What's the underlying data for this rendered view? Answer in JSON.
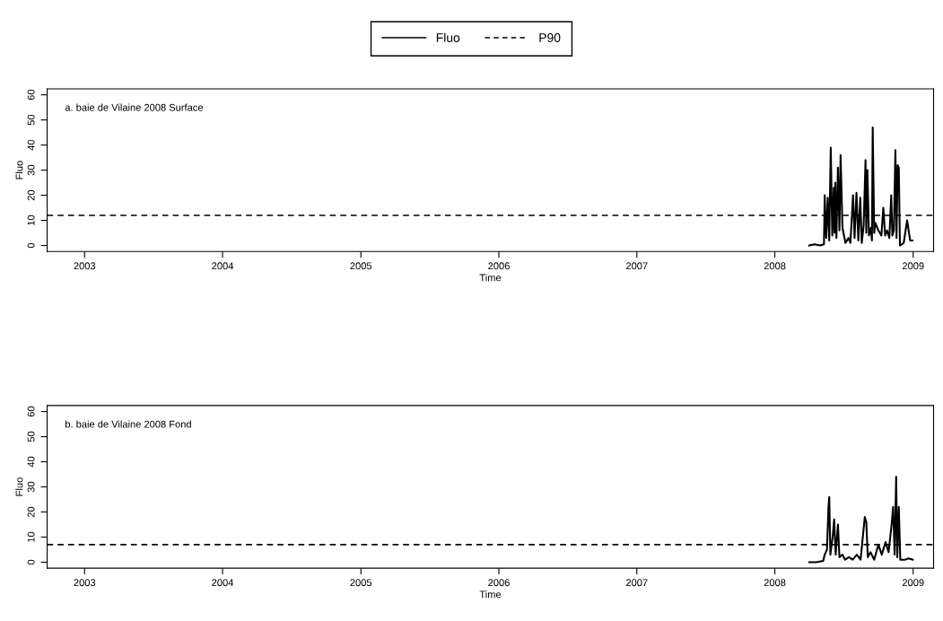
{
  "chart_data": [
    {
      "type": "line",
      "title": "a. baie de Vilaine 2008 Surface",
      "xlabel": "Time",
      "ylabel": "Fluo",
      "legend": "top",
      "xlim": [
        "2002-09-24",
        "2009-02-24"
      ],
      "ylim": [
        -2.4,
        62.4
      ],
      "xticks": [
        {
          "value": "2003-01-01",
          "label": "2003"
        },
        {
          "value": "2004-01-01",
          "label": "2004"
        },
        {
          "value": "2005-01-01",
          "label": "2005"
        },
        {
          "value": "2006-01-01",
          "label": "2006"
        },
        {
          "value": "2007-01-01",
          "label": "2007"
        },
        {
          "value": "2008-01-01",
          "label": "2008"
        },
        {
          "value": "2009-01-01",
          "label": "2009"
        }
      ],
      "yticks": [
        0,
        10,
        20,
        30,
        40,
        50,
        60
      ],
      "ref_lines": [
        {
          "axis": "y",
          "value": 12,
          "label": "P90",
          "color": "#000000",
          "line_style": "dashed"
        }
      ],
      "series": [
        {
          "name": "Fluo",
          "color": "#000000",
          "x": [
            "2008-04-01",
            "2008-04-15",
            "2008-04-30",
            "2008-05-10",
            "2008-05-12",
            "2008-05-16",
            "2008-05-20",
            "2008-05-24",
            "2008-05-28",
            "2008-06-01",
            "2008-06-05",
            "2008-06-07",
            "2008-06-09",
            "2008-06-12",
            "2008-06-16",
            "2008-06-20",
            "2008-06-23",
            "2008-06-28",
            "2008-07-06",
            "2008-07-14",
            "2008-07-19",
            "2008-07-26",
            "2008-07-30",
            "2008-08-04",
            "2008-08-09",
            "2008-08-14",
            "2008-08-18",
            "2008-08-23",
            "2008-08-28",
            "2008-08-30",
            "2008-09-02",
            "2008-09-06",
            "2008-09-11",
            "2008-09-14",
            "2008-09-16",
            "2008-09-20",
            "2008-09-23",
            "2008-10-01",
            "2008-10-09",
            "2008-10-14",
            "2008-10-19",
            "2008-10-24",
            "2008-10-30",
            "2008-11-04",
            "2008-11-07",
            "2008-11-11",
            "2008-11-15",
            "2008-11-18",
            "2008-11-21",
            "2008-11-24",
            "2008-11-27",
            "2008-12-07",
            "2008-12-16",
            "2008-12-24",
            "2008-12-30"
          ],
          "values": [
            0,
            0.5,
            0,
            0.5,
            20,
            3,
            19,
            2,
            39,
            4,
            23,
            5,
            25,
            3,
            31,
            6,
            36,
            7,
            1,
            3,
            1,
            20,
            3,
            21,
            2,
            19,
            1,
            8,
            34,
            5,
            30,
            4,
            7,
            2,
            47,
            5,
            9,
            6,
            4,
            15,
            4,
            6,
            3,
            20,
            4,
            6,
            38,
            3,
            32,
            31,
            0,
            1,
            10,
            2,
            2
          ]
        }
      ]
    },
    {
      "type": "line",
      "title": "b. baie de Vilaine 2008 Fond",
      "xlabel": "Time",
      "ylabel": "Fluo",
      "xlim": [
        "2002-09-24",
        "2009-02-24"
      ],
      "ylim": [
        -2.4,
        62.4
      ],
      "xticks": [
        {
          "value": "2003-01-01",
          "label": "2003"
        },
        {
          "value": "2004-01-01",
          "label": "2004"
        },
        {
          "value": "2005-01-01",
          "label": "2005"
        },
        {
          "value": "2006-01-01",
          "label": "2006"
        },
        {
          "value": "2007-01-01",
          "label": "2007"
        },
        {
          "value": "2008-01-01",
          "label": "2008"
        },
        {
          "value": "2009-01-01",
          "label": "2009"
        }
      ],
      "yticks": [
        0,
        10,
        20,
        30,
        40,
        50,
        60
      ],
      "ref_lines": [
        {
          "axis": "y",
          "value": 7,
          "color": "#000000",
          "line_style": "dashed"
        }
      ],
      "series": [
        {
          "color": "#000000",
          "x": [
            "2008-04-01",
            "2008-04-20",
            "2008-05-08",
            "2008-05-12",
            "2008-05-18",
            "2008-05-22",
            "2008-05-24",
            "2008-05-27",
            "2008-06-02",
            "2008-06-06",
            "2008-06-10",
            "2008-06-16",
            "2008-06-20",
            "2008-06-28",
            "2008-07-05",
            "2008-07-15",
            "2008-07-25",
            "2008-08-05",
            "2008-08-15",
            "2008-08-26",
            "2008-08-30",
            "2008-09-03",
            "2008-09-10",
            "2008-09-20",
            "2008-10-01",
            "2008-10-10",
            "2008-10-20",
            "2008-10-28",
            "2008-11-05",
            "2008-11-09",
            "2008-11-13",
            "2008-11-17",
            "2008-11-20",
            "2008-11-24",
            "2008-11-28",
            "2008-12-10",
            "2008-12-20",
            "2008-12-31"
          ],
          "values": [
            0,
            0,
            0.5,
            3,
            5,
            22,
            26,
            3,
            10,
            17,
            3,
            15,
            2,
            3,
            1,
            2,
            1,
            3,
            1,
            18,
            16,
            2,
            4,
            1,
            7,
            3,
            8,
            4,
            15,
            22,
            3,
            34,
            2,
            22,
            1,
            1,
            1.5,
            1
          ]
        }
      ]
    }
  ]
}
